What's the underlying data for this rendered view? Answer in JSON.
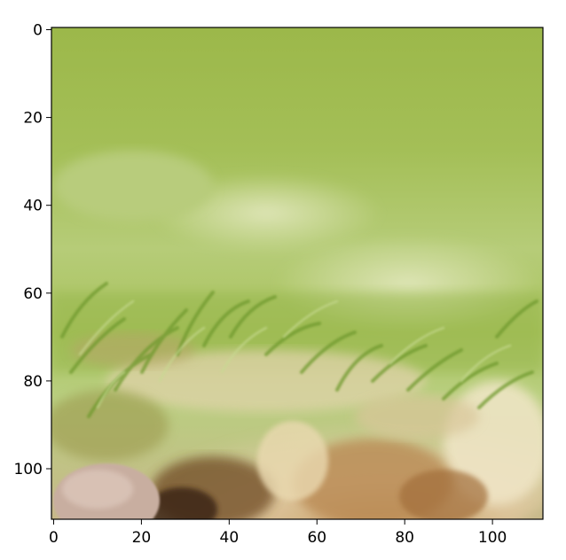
{
  "figure": {
    "image_description_icon": "grass-and-fur-photo",
    "x_axis": {
      "ticks": [
        0,
        20,
        40,
        60,
        80,
        100
      ],
      "range": [
        -0.5,
        111.5
      ]
    },
    "y_axis": {
      "ticks": [
        0,
        20,
        40,
        60,
        80,
        100
      ],
      "range": [
        -0.5,
        111.5
      ],
      "inverted": true
    },
    "palette": {
      "grass_top": "#9cb84a",
      "grass_mid": "#a8c25a",
      "grass_light": "#c2d48c",
      "blade_dark": "#6f9a2e",
      "fur_cream": "#e8d9b5",
      "fur_tan": "#c89a62",
      "fur_brown": "#8a5a2a",
      "fur_dark": "#4a2e16",
      "pebble": "#c8aea0"
    }
  }
}
